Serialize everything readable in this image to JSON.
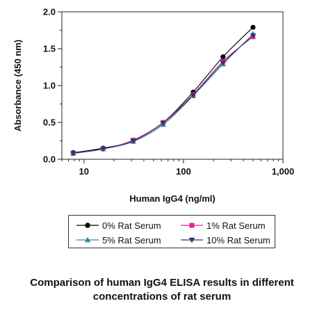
{
  "chart_data": {
    "type": "line",
    "xscale": "log",
    "xlim": [
      6,
      1000
    ],
    "ylim": [
      0,
      2.0
    ],
    "x_ticks": [
      10,
      100,
      1000
    ],
    "x_tick_labels": [
      "10",
      "100",
      "1,000"
    ],
    "y_ticks": [
      0,
      0.5,
      1.0,
      1.5,
      2.0
    ],
    "y_tick_labels": [
      "0.0",
      "0.5",
      "1.0",
      "1.5",
      "2.0"
    ],
    "xlabel": "Human IgG4 (ng/ml)",
    "ylabel": "Absorbance (450 nm)",
    "x": [
      7.8,
      15.6,
      31.25,
      62.5,
      125,
      250,
      500
    ],
    "series": [
      {
        "name": "0% Rat Serum",
        "marker": "circle",
        "color": "#000000",
        "values": [
          0.09,
          0.15,
          0.25,
          0.5,
          0.91,
          1.39,
          1.79
        ]
      },
      {
        "name": "1% Rat Serum",
        "marker": "square",
        "color": "#e8257a",
        "values": [
          0.08,
          0.14,
          0.26,
          0.5,
          0.88,
          1.33,
          1.66
        ]
      },
      {
        "name": "5% Rat Serum",
        "marker": "triangle-up",
        "color": "#2a8f9a",
        "values": [
          0.08,
          0.14,
          0.24,
          0.47,
          0.86,
          1.29,
          1.7
        ]
      },
      {
        "name": "10% Rat Serum",
        "marker": "triangle-down",
        "color": "#3a2f7a",
        "values": [
          0.08,
          0.14,
          0.25,
          0.49,
          0.87,
          1.31,
          1.68
        ]
      }
    ],
    "legend_position": "below",
    "grid": false,
    "caption": [
      "Comparison of human IgG4 ELISA results in different",
      "concentrations of rat serum"
    ]
  }
}
